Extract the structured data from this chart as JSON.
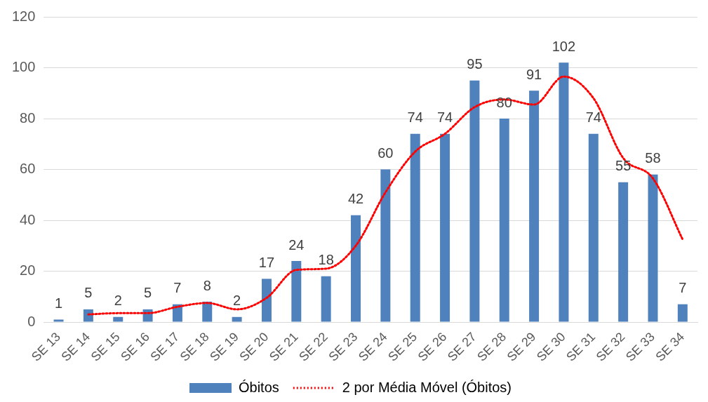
{
  "chart_data": {
    "type": "bar",
    "categories": [
      "SE 13",
      "SE 14",
      "SE 15",
      "SE 16",
      "SE 17",
      "SE 18",
      "SE 19",
      "SE 20",
      "SE 21",
      "SE 22",
      "SE 23",
      "SE 24",
      "SE 25",
      "SE 26",
      "SE 27",
      "SE 28",
      "SE 29",
      "SE 30",
      "SE 31",
      "SE 32",
      "SE 33",
      "SE 34"
    ],
    "series": [
      {
        "name": "Óbitos",
        "color": "#4f81bd",
        "values": [
          1,
          5,
          2,
          5,
          7,
          8,
          2,
          17,
          24,
          18,
          42,
          60,
          74,
          74,
          95,
          80,
          91,
          102,
          74,
          55,
          58,
          7
        ],
        "value_labels": [
          "1",
          "5",
          "2",
          "5",
          "7",
          "8",
          "2",
          "17",
          "24",
          "18",
          "42",
          "60",
          "74",
          "74",
          "95",
          "80",
          "91",
          "102",
          "74",
          "55",
          "58",
          "7"
        ]
      },
      {
        "name": "2 por Média Móvel (Óbitos)",
        "type": "line",
        "color": "#ff0000",
        "line_style": "dotted",
        "marker": "none",
        "values": [
          null,
          3,
          3.5,
          3.5,
          6,
          7.5,
          5,
          9.5,
          20.5,
          21,
          30,
          51,
          67,
          74,
          84.5,
          87.5,
          85.5,
          96.5,
          88,
          64.5,
          56.5,
          32.5
        ]
      }
    ],
    "ylim": [
      0,
      120
    ],
    "yticks": [
      0,
      20,
      40,
      60,
      80,
      100,
      120
    ],
    "grid": "y",
    "legend": "bottom"
  }
}
